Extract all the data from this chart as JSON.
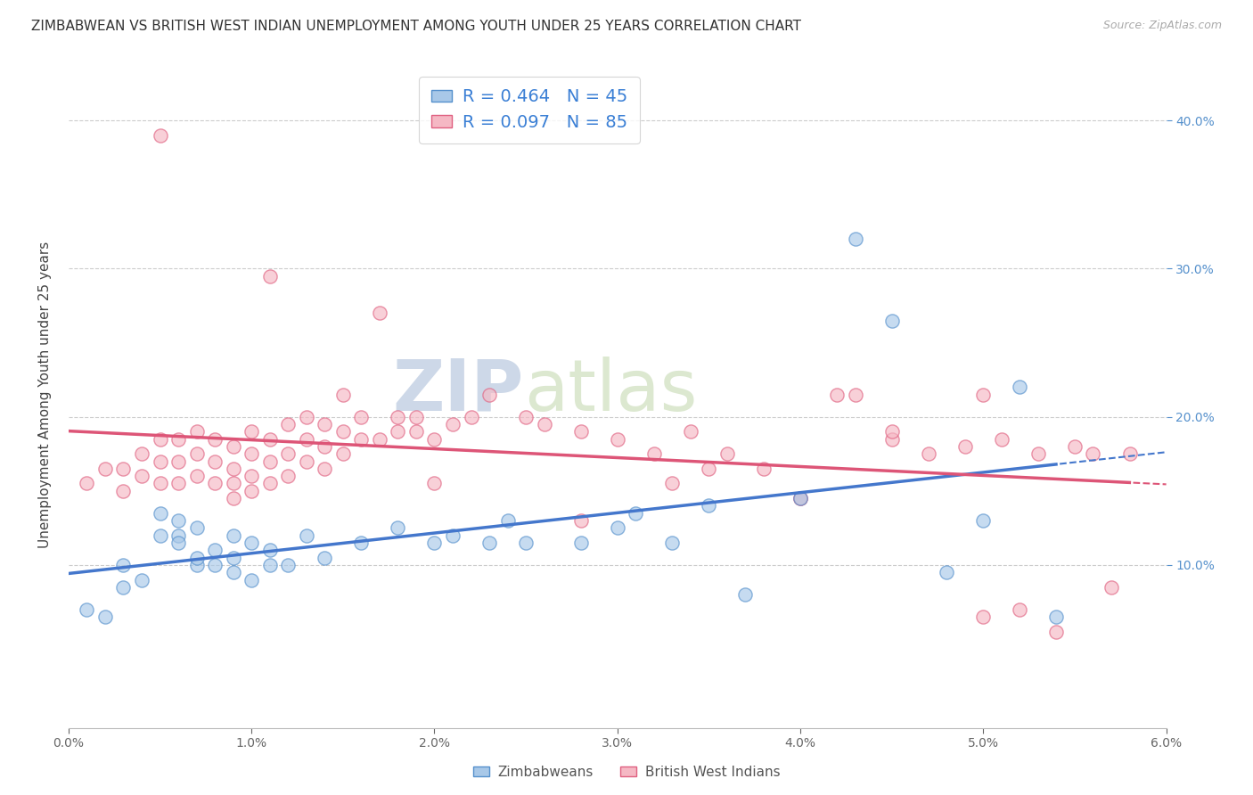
{
  "title": "ZIMBABWEAN VS BRITISH WEST INDIAN UNEMPLOYMENT AMONG YOUTH UNDER 25 YEARS CORRELATION CHART",
  "source": "Source: ZipAtlas.com",
  "ylabel": "Unemployment Among Youth under 25 years",
  "xlim": [
    0.0,
    0.06
  ],
  "ylim": [
    -0.01,
    0.44
  ],
  "yticks": [
    0.1,
    0.2,
    0.3,
    0.4
  ],
  "xticks": [
    0.0,
    0.01,
    0.02,
    0.03,
    0.04,
    0.05,
    0.06
  ],
  "blue_color": "#a8c8e8",
  "pink_color": "#f5b8c4",
  "blue_edge_color": "#5590cc",
  "pink_edge_color": "#e06080",
  "blue_line_color": "#4477cc",
  "pink_line_color": "#dd5577",
  "legend_r_color": "#3a7fd5",
  "blue_R": 0.464,
  "blue_N": 45,
  "pink_R": 0.097,
  "pink_N": 85,
  "blue_scatter_x": [
    0.001,
    0.002,
    0.003,
    0.003,
    0.004,
    0.005,
    0.005,
    0.006,
    0.006,
    0.006,
    0.007,
    0.007,
    0.007,
    0.008,
    0.008,
    0.009,
    0.009,
    0.009,
    0.01,
    0.01,
    0.011,
    0.011,
    0.012,
    0.013,
    0.014,
    0.016,
    0.018,
    0.02,
    0.021,
    0.023,
    0.024,
    0.025,
    0.028,
    0.03,
    0.031,
    0.033,
    0.035,
    0.037,
    0.04,
    0.043,
    0.045,
    0.048,
    0.05,
    0.052,
    0.054
  ],
  "blue_scatter_y": [
    0.07,
    0.065,
    0.085,
    0.1,
    0.09,
    0.12,
    0.135,
    0.12,
    0.13,
    0.115,
    0.1,
    0.105,
    0.125,
    0.1,
    0.11,
    0.095,
    0.105,
    0.12,
    0.09,
    0.115,
    0.1,
    0.11,
    0.1,
    0.12,
    0.105,
    0.115,
    0.125,
    0.115,
    0.12,
    0.115,
    0.13,
    0.115,
    0.115,
    0.125,
    0.135,
    0.115,
    0.14,
    0.08,
    0.145,
    0.32,
    0.265,
    0.095,
    0.13,
    0.22,
    0.065
  ],
  "pink_scatter_x": [
    0.001,
    0.002,
    0.003,
    0.003,
    0.004,
    0.004,
    0.005,
    0.005,
    0.005,
    0.006,
    0.006,
    0.006,
    0.007,
    0.007,
    0.007,
    0.008,
    0.008,
    0.008,
    0.009,
    0.009,
    0.009,
    0.009,
    0.01,
    0.01,
    0.01,
    0.01,
    0.011,
    0.011,
    0.011,
    0.012,
    0.012,
    0.012,
    0.013,
    0.013,
    0.013,
    0.014,
    0.014,
    0.014,
    0.015,
    0.015,
    0.016,
    0.016,
    0.017,
    0.018,
    0.018,
    0.019,
    0.019,
    0.02,
    0.021,
    0.022,
    0.023,
    0.025,
    0.026,
    0.028,
    0.03,
    0.032,
    0.034,
    0.035,
    0.036,
    0.038,
    0.04,
    0.042,
    0.043,
    0.045,
    0.047,
    0.049,
    0.05,
    0.051,
    0.053,
    0.055,
    0.056,
    0.058,
    0.005,
    0.011,
    0.015,
    0.017,
    0.02,
    0.028,
    0.033,
    0.04,
    0.045,
    0.05,
    0.052,
    0.054,
    0.057
  ],
  "pink_scatter_y": [
    0.155,
    0.165,
    0.15,
    0.165,
    0.16,
    0.175,
    0.155,
    0.17,
    0.185,
    0.155,
    0.17,
    0.185,
    0.16,
    0.175,
    0.19,
    0.155,
    0.17,
    0.185,
    0.145,
    0.155,
    0.165,
    0.18,
    0.15,
    0.16,
    0.175,
    0.19,
    0.155,
    0.17,
    0.185,
    0.16,
    0.175,
    0.195,
    0.17,
    0.185,
    0.2,
    0.165,
    0.18,
    0.195,
    0.175,
    0.19,
    0.185,
    0.2,
    0.185,
    0.19,
    0.2,
    0.19,
    0.2,
    0.185,
    0.195,
    0.2,
    0.215,
    0.2,
    0.195,
    0.19,
    0.185,
    0.175,
    0.19,
    0.165,
    0.175,
    0.165,
    0.145,
    0.215,
    0.215,
    0.185,
    0.175,
    0.18,
    0.215,
    0.185,
    0.175,
    0.18,
    0.175,
    0.175,
    0.39,
    0.295,
    0.215,
    0.27,
    0.155,
    0.13,
    0.155,
    0.145,
    0.19,
    0.065,
    0.07,
    0.055,
    0.085
  ],
  "background_color": "#ffffff",
  "grid_color": "#cccccc",
  "watermark_text": "ZIPatlas",
  "watermark_color": "#cdd8e8",
  "title_fontsize": 11,
  "axis_label_fontsize": 11,
  "tick_fontsize": 10,
  "right_tick_color": "#5590cc"
}
